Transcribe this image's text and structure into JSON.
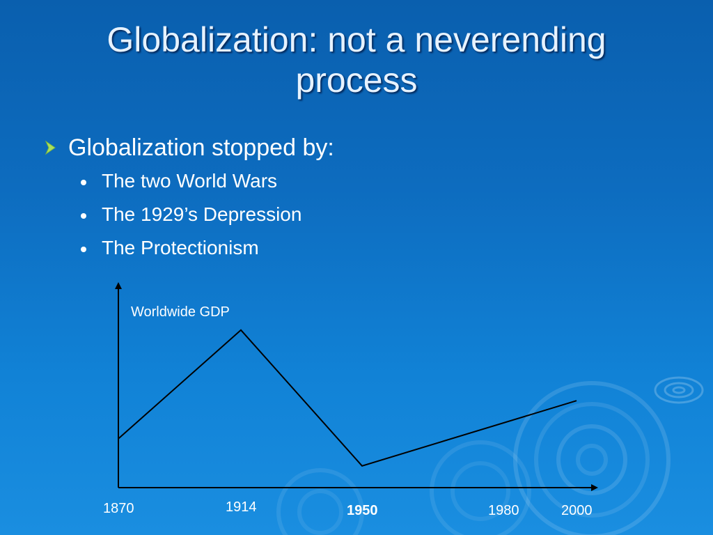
{
  "slide": {
    "title": "Globalization: not a neverending process",
    "title_line1": "Globalization: not a neverending",
    "title_line2": "process",
    "bullet": "Globalization stopped by:",
    "sub_bullets": [
      "The two World Wars",
      "The 1929’s Depression",
      "The Protectionism"
    ],
    "colors": {
      "background": "#0d6cbf",
      "arrow_bullet": "#a8e060",
      "text": "#ffffff"
    },
    "icons": {
      "level1_bullet": "arrow-bullet-icon",
      "level2_bullet": "dot-bullet-icon"
    }
  },
  "chart_data": {
    "type": "line",
    "ylabel": "Worldwide GDP",
    "tick_labels": [
      "1870",
      "1914",
      "1950",
      "1980",
      "2000"
    ],
    "bold_tick": "1950",
    "points": [
      {
        "x": "1870",
        "y": 0.27
      },
      {
        "x": "1914",
        "y": 0.87
      },
      {
        "x": "1950",
        "y": 0.12
      },
      {
        "x": "2000",
        "y": 0.48
      }
    ],
    "y_values_note_unit": "relative level",
    "grid": false,
    "legend": "none"
  }
}
